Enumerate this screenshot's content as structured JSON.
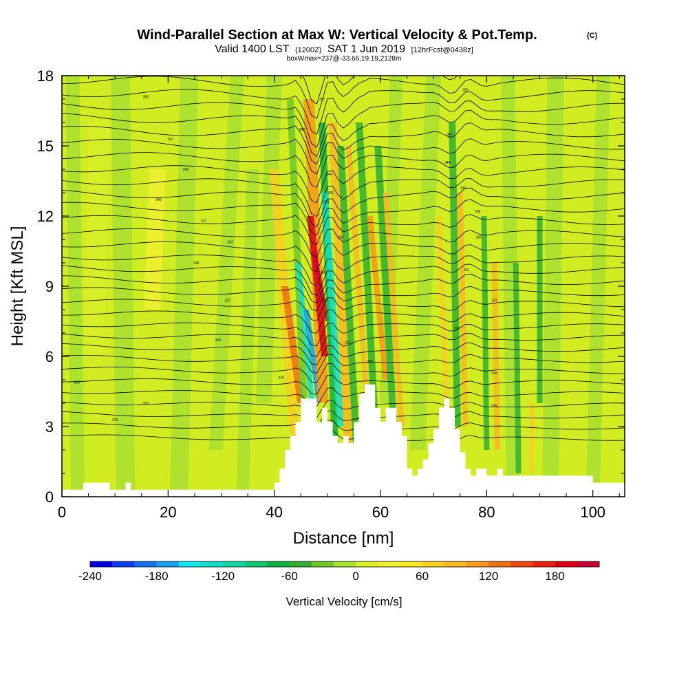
{
  "chart_data": {
    "type": "heatmap",
    "title": "Wind-Parallel Section at Max W: Vertical Velocity & Pot.Temp.",
    "title_mark": "(C)",
    "subtitle": {
      "valid": "Valid 1400 LST",
      "utc": "(1200Z)",
      "date": "SAT 1 Jun 2019",
      "forecast": "[12hrFcst@0438z]"
    },
    "subtitle2": "boxWmax=237@-33.66,19.19,2128m",
    "xlabel": "Distance [nm]",
    "ylabel": "Height [Kft MSL]",
    "xlim": [
      0,
      106
    ],
    "ylim": [
      0,
      18
    ],
    "xticks": [
      0,
      20,
      40,
      60,
      80,
      100
    ],
    "yticks": [
      0,
      3,
      6,
      9,
      12,
      15,
      18
    ],
    "colorbar": {
      "label": "Vertical Velocity [cm/s]",
      "tick_values": [
        -240,
        -180,
        -120,
        -60,
        0,
        60,
        120,
        180
      ],
      "tick_labels": [
        "-240",
        "-180",
        "-120",
        "-60",
        "0",
        "60",
        "120",
        "180"
      ],
      "colors": [
        "#0000e0",
        "#0a3cf0",
        "#1470f0",
        "#14a0f0",
        "#14e8f0",
        "#10e0c8",
        "#10d8a0",
        "#10c870",
        "#10b040",
        "#30b030",
        "#70c828",
        "#a8e030",
        "#d8f028",
        "#f0f030",
        "#f8e820",
        "#f8d020",
        "#f8b820",
        "#f89818",
        "#f07010",
        "#f04810",
        "#e82010",
        "#e00010",
        "#c80030"
      ]
    },
    "terrain": [
      [
        0,
        0.3
      ],
      [
        4,
        0.3
      ],
      [
        4,
        0.6
      ],
      [
        9,
        0.6
      ],
      [
        9,
        0.3
      ],
      [
        12,
        0.3
      ],
      [
        12,
        0.6
      ],
      [
        13,
        0.6
      ],
      [
        13,
        0.3
      ],
      [
        40,
        0.3
      ],
      [
        40,
        0.6
      ],
      [
        41,
        0.6
      ],
      [
        41,
        1.2
      ],
      [
        42,
        1.2
      ],
      [
        42,
        2.0
      ],
      [
        43,
        2.0
      ],
      [
        43,
        2.6
      ],
      [
        44,
        2.6
      ],
      [
        44,
        3.2
      ],
      [
        45,
        3.2
      ],
      [
        45,
        4.2
      ],
      [
        48,
        4.2
      ],
      [
        48,
        3.2
      ],
      [
        49,
        3.2
      ],
      [
        49,
        3.8
      ],
      [
        50,
        3.8
      ],
      [
        50,
        3.2
      ],
      [
        51,
        3.2
      ],
      [
        51,
        2.6
      ],
      [
        52,
        2.6
      ],
      [
        52,
        2.3
      ],
      [
        53,
        2.3
      ],
      [
        53,
        2.6
      ],
      [
        54,
        2.6
      ],
      [
        54,
        2.3
      ],
      [
        55,
        2.3
      ],
      [
        55,
        3.2
      ],
      [
        56,
        3.2
      ],
      [
        56,
        4.4
      ],
      [
        57,
        4.4
      ],
      [
        57,
        4.8
      ],
      [
        59,
        4.8
      ],
      [
        59,
        3.8
      ],
      [
        60,
        3.8
      ],
      [
        60,
        3.2
      ],
      [
        61,
        3.2
      ],
      [
        61,
        3.8
      ],
      [
        63,
        3.8
      ],
      [
        63,
        3.2
      ],
      [
        64,
        3.2
      ],
      [
        64,
        2.6
      ],
      [
        65,
        2.6
      ],
      [
        65,
        1.2
      ],
      [
        66,
        1.2
      ],
      [
        66,
        0.9
      ],
      [
        67,
        0.9
      ],
      [
        67,
        1.2
      ],
      [
        68,
        1.2
      ],
      [
        68,
        1.6
      ],
      [
        69,
        1.6
      ],
      [
        69,
        2.3
      ],
      [
        70,
        2.3
      ],
      [
        70,
        2.9
      ],
      [
        71,
        2.9
      ],
      [
        71,
        3.8
      ],
      [
        72,
        3.8
      ],
      [
        72,
        4.2
      ],
      [
        73,
        4.2
      ],
      [
        73,
        3.8
      ],
      [
        74,
        3.8
      ],
      [
        74,
        2.9
      ],
      [
        75,
        2.9
      ],
      [
        75,
        1.9
      ],
      [
        76,
        1.9
      ],
      [
        76,
        1.2
      ],
      [
        77,
        1.2
      ],
      [
        77,
        0.9
      ],
      [
        78,
        0.9
      ],
      [
        78,
        1.2
      ],
      [
        80,
        1.2
      ],
      [
        80,
        0.9
      ],
      [
        82,
        0.9
      ],
      [
        82,
        1.2
      ],
      [
        83,
        1.2
      ],
      [
        83,
        0.9
      ],
      [
        100,
        0.9
      ],
      [
        100,
        0.6
      ],
      [
        106,
        0.6
      ]
    ],
    "contour_labels": [
      {
        "x": 2.8,
        "y": 4.9,
        "text": "318"
      },
      {
        "x": 10,
        "y": 3.3,
        "text": "313"
      },
      {
        "x": 15.8,
        "y": 4.0,
        "text": "316"
      },
      {
        "x": 15.8,
        "y": 17.1,
        "text": "352"
      },
      {
        "x": 20.5,
        "y": 15.3,
        "text": "347"
      },
      {
        "x": 23.3,
        "y": 14.0,
        "text": "343"
      },
      {
        "x": 18.2,
        "y": 12.7,
        "text": "340"
      },
      {
        "x": 26.7,
        "y": 11.8,
        "text": "337"
      },
      {
        "x": 31.7,
        "y": 10.9,
        "text": "333"
      },
      {
        "x": 25.3,
        "y": 10.0,
        "text": "330"
      },
      {
        "x": 31.2,
        "y": 8.4,
        "text": "327"
      },
      {
        "x": 29.4,
        "y": 6.7,
        "text": "324"
      },
      {
        "x": 41.3,
        "y": 5.1,
        "text": "319"
      },
      {
        "x": 45.2,
        "y": 15.7,
        "text": "348"
      },
      {
        "x": 49.0,
        "y": 17.0,
        "text": "357"
      },
      {
        "x": 50.3,
        "y": 13.8,
        "text": "344"
      },
      {
        "x": 50.6,
        "y": 13.0,
        "text": "341"
      },
      {
        "x": 49.8,
        "y": 12.6,
        "text": "339"
      },
      {
        "x": 52.5,
        "y": 11.1,
        "text": "334"
      },
      {
        "x": 49.2,
        "y": 9.6,
        "text": "330"
      },
      {
        "x": 49.6,
        "y": 8.4,
        "text": "327"
      },
      {
        "x": 53.8,
        "y": 6.6,
        "text": "322"
      },
      {
        "x": 58.0,
        "y": 5.8,
        "text": "320"
      },
      {
        "x": 76.0,
        "y": 17.4,
        "text": "353"
      },
      {
        "x": 73.0,
        "y": 15.5,
        "text": "347"
      },
      {
        "x": 72.6,
        "y": 14.3,
        "text": "344"
      },
      {
        "x": 75.6,
        "y": 13.2,
        "text": "341"
      },
      {
        "x": 78.3,
        "y": 12.2,
        "text": "338"
      },
      {
        "x": 78.5,
        "y": 11.1,
        "text": "335"
      },
      {
        "x": 76.2,
        "y": 9.7,
        "text": "331"
      },
      {
        "x": 81.5,
        "y": 8.4,
        "text": "327"
      },
      {
        "x": 74.4,
        "y": 7.2,
        "text": "323"
      },
      {
        "x": 81.4,
        "y": 5.3,
        "text": "319"
      },
      {
        "x": 81.4,
        "y": 3.9,
        "text": "315"
      }
    ]
  }
}
